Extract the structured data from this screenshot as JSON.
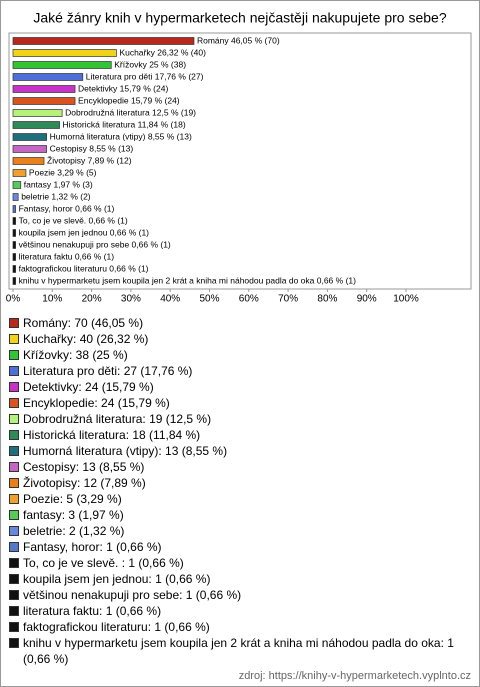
{
  "chart_data": {
    "type": "bar",
    "orientation": "horizontal",
    "title": "Jaké žánry knih v hypermarketech nejčastěji nakupujete pro sebe?",
    "values": [
      46.05,
      26.32,
      25,
      17.76,
      15.79,
      15.79,
      12.5,
      11.84,
      8.55,
      8.55,
      7.89,
      3.29,
      1.97,
      1.32,
      0.66,
      0.66,
      0.66,
      0.66,
      0.66,
      0.66,
      0.66
    ],
    "value_labels": [
      "Romány 46,05 % (70)",
      "Kuchařky 26,32 % (40)",
      "Křížovky 25 % (38)",
      "Literatura pro děti 17,76 % (27)",
      "Detektivky 15,79 % (24)",
      "Encyklopedie 15,79 % (24)",
      "Dobrodružná literatura 12,5 % (19)",
      "Historická literatura 11,84 % (18)",
      "Humorná literatura (vtipy) 8,55 % (13)",
      "Cestopisy 8,55 % (13)",
      "Životopisy 7,89 % (12)",
      "Poezie 3,29 % (5)",
      "fantasy 1,97 % (3)",
      "beletrie 1,32 % (2)",
      "Fantasy, horor 0,66 % (1)",
      "To, co je ve slevě.  0,66 % (1)",
      "koupila jsem jen jednou 0,66 % (1)",
      "většinou nenakupuji pro sebe 0,66 % (1)",
      "literatura faktu 0,66 % (1)",
      "faktografickou literaturu 0,66 % (1)",
      "knihu v hypermarketu jsem koupila jen 2 krát a kniha mi náhodou padla do oka 0,66 % (1)"
    ],
    "legend_labels": [
      "Romány: 70 (46,05 %)",
      "Kuchařky: 40 (26,32 %)",
      "Křížovky: 38 (25 %)",
      "Literatura pro děti: 27 (17,76 %)",
      "Detektivky: 24 (15,79 %)",
      "Encyklopedie: 24 (15,79 %)",
      "Dobrodružná literatura: 19 (12,5 %)",
      "Historická literatura: 18 (11,84 %)",
      "Humorná literatura (vtipy): 13 (8,55 %)",
      "Cestopisy: 13 (8,55 %)",
      "Životopisy: 12 (7,89 %)",
      "Poezie: 5 (3,29 %)",
      "fantasy: 3 (1,97 %)",
      "beletrie: 2 (1,32 %)",
      "Fantasy, horor: 1 (0,66 %)",
      "To, co je ve slevě. : 1 (0,66 %)",
      "koupila jsem jen jednou: 1 (0,66 %)",
      "většinou nenakupuji pro sebe: 1 (0,66 %)",
      "literatura faktu: 1 (0,66 %)",
      "faktografickou literaturu: 1 (0,66 %)",
      "knihu v hypermarketu jsem koupila jen 2 krát a kniha mi náhodou padla do oka: 1 (0,66 %)"
    ],
    "colors": [
      "#b8281c",
      "#f2d21a",
      "#33c433",
      "#4f6fd8",
      "#c633c6",
      "#d9541e",
      "#b6f27a",
      "#2e8b57",
      "#1f6e7e",
      "#c466c4",
      "#e8801e",
      "#f0a030",
      "#55cc55",
      "#6688dd",
      "#5577cc",
      "#111111",
      "#111111",
      "#111111",
      "#111111",
      "#111111",
      "#111111"
    ],
    "xlim": [
      0,
      100
    ],
    "xticks": [
      {
        "value": 0,
        "label": "0%"
      },
      {
        "value": 10,
        "label": "10%"
      },
      {
        "value": 20,
        "label": "20%"
      },
      {
        "value": 30,
        "label": "30%"
      },
      {
        "value": 40,
        "label": "40%"
      },
      {
        "value": 50,
        "label": "50%"
      },
      {
        "value": 60,
        "label": "60%"
      },
      {
        "value": 70,
        "label": "70%"
      },
      {
        "value": 80,
        "label": "80%"
      },
      {
        "value": 90,
        "label": "90%"
      },
      {
        "value": 100,
        "label": "100%"
      }
    ],
    "source": "zdroj: https://knihy-v-hypermarketech.vyplnto.cz"
  }
}
